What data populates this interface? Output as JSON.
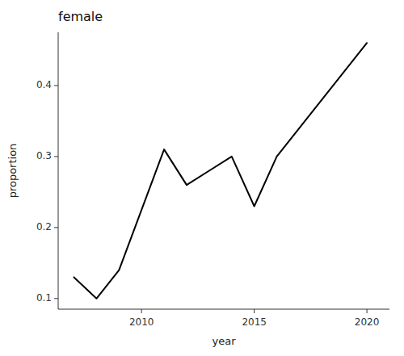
{
  "chart_data": {
    "type": "line",
    "title": "female",
    "x_label": "year",
    "y_label": "proportion",
    "x": [
      2007,
      2008,
      2009,
      2011,
      2012,
      2013,
      2014,
      2015,
      2016,
      2020
    ],
    "values": [
      0.13,
      0.1,
      0.14,
      0.31,
      0.26,
      0.28,
      0.3,
      0.23,
      0.3,
      0.46
    ],
    "color": "#000000",
    "xlim": [
      2006.3,
      2021.0
    ],
    "ylim": [
      0.085,
      0.475
    ],
    "xticks": [
      2010,
      2015,
      2020
    ],
    "yticks": [
      0.1,
      0.2,
      0.3,
      0.4
    ],
    "grid": false
  }
}
